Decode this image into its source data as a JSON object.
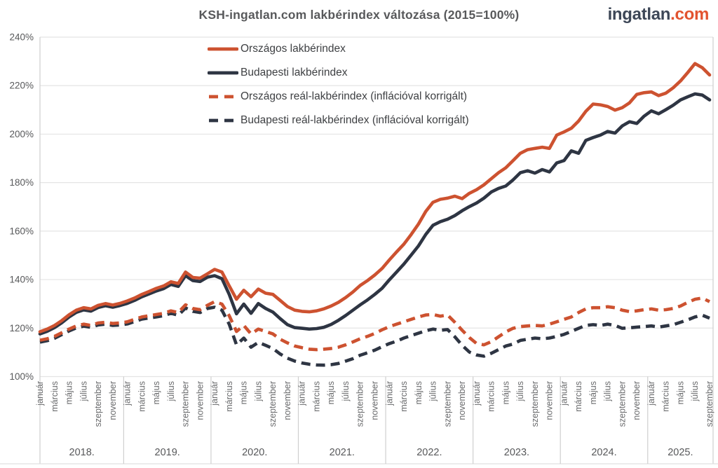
{
  "header": {
    "title": "KSH-ingatlan.com lakbérindex változása (2015=100%)",
    "logo": {
      "name": "ingatlan",
      "tld": ".com"
    }
  },
  "colors": {
    "orange": "#cd5230",
    "navy": "#2e3543",
    "grid": "#e4e4e4",
    "axis_line": "#cfcfcf",
    "bottom_line": "#e0e0e0",
    "tick_text": "#6a6b6d",
    "axis_text": "#57585a"
  },
  "chart_data": {
    "type": "line",
    "title": "KSH-ingatlan.com lakbérindex változása (2015=100%)",
    "grid": "horizontal",
    "legend_position": "top-left-inside",
    "y_axis": {
      "min": 100,
      "max": 240,
      "step": 20,
      "unit": "%",
      "tick_labels": [
        "100%",
        "120%",
        "140%",
        "160%",
        "180%",
        "200%",
        "220%",
        "240%"
      ]
    },
    "x_axis": {
      "start": "2018 január",
      "end": "2025 szeptember",
      "years": [
        {
          "label": "2018.",
          "months": 12
        },
        {
          "label": "2019.",
          "months": 12
        },
        {
          "label": "2020.",
          "months": 12
        },
        {
          "label": "2021.",
          "months": 12
        },
        {
          "label": "2022.",
          "months": 12
        },
        {
          "label": "2023.",
          "months": 12
        },
        {
          "label": "2024.",
          "months": 12
        },
        {
          "label": "2025.",
          "months": 9
        }
      ],
      "month_tick_offsets": [
        0,
        2,
        4,
        6,
        8,
        10
      ],
      "month_tick_labels": [
        "január",
        "március",
        "május",
        "július",
        "szeptember",
        "november"
      ]
    },
    "series": [
      {
        "name": "Országos lakbérindex",
        "color": "#cd5230",
        "dashed": false,
        "values": [
          118.5,
          119.6,
          121.1,
          123.1,
          125.5,
          127.4,
          128.4,
          127.9,
          129.4,
          130.1,
          129.5,
          130.2,
          131.2,
          132.4,
          133.9,
          135.1,
          136.4,
          137.4,
          139.1,
          138.4,
          143.1,
          140.9,
          140.6,
          142.4,
          144.2,
          143.1,
          137.4,
          131.9,
          135.6,
          132.9,
          136.1,
          134.4,
          133.9,
          131.4,
          128.9,
          127.4,
          126.9,
          126.7,
          127.1,
          127.9,
          129.1,
          130.6,
          132.6,
          134.9,
          137.6,
          139.6,
          141.9,
          144.6,
          148.1,
          151.4,
          154.6,
          158.6,
          162.9,
          168.1,
          171.9,
          173.1,
          173.6,
          174.4,
          173.4,
          175.6,
          177.1,
          179.1,
          181.6,
          184.1,
          186.1,
          189.1,
          192.1,
          193.6,
          194.1,
          194.6,
          194.1,
          199.6,
          200.9,
          202.4,
          205.4,
          209.4,
          212.4,
          212.1,
          211.4,
          209.9,
          210.9,
          212.9,
          216.4,
          217.1,
          217.4,
          215.9,
          216.9,
          219.1,
          221.9,
          225.4,
          229.1,
          227.4,
          224.4
        ]
      },
      {
        "name": "Budapesti lakbérindex",
        "color": "#2e3543",
        "dashed": false,
        "values": [
          117.6,
          118.7,
          120.2,
          122.2,
          124.6,
          126.5,
          127.5,
          127.0,
          128.5,
          129.2,
          128.6,
          129.3,
          130.2,
          131.4,
          132.9,
          134.1,
          135.3,
          136.3,
          138.0,
          137.2,
          141.6,
          139.6,
          139.2,
          141.0,
          141.6,
          140.4,
          133.9,
          125.9,
          129.9,
          126.1,
          130.1,
          128.1,
          126.6,
          123.9,
          121.4,
          120.2,
          119.9,
          119.6,
          119.8,
          120.3,
          121.5,
          123.2,
          125.2,
          127.4,
          129.6,
          131.6,
          133.9,
          136.4,
          139.9,
          143.1,
          146.4,
          150.1,
          153.9,
          158.6,
          162.4,
          163.9,
          164.9,
          166.4,
          168.4,
          170.1,
          171.6,
          173.6,
          176.1,
          177.6,
          178.6,
          181.1,
          184.1,
          184.9,
          183.9,
          185.4,
          184.4,
          188.1,
          189.1,
          193.1,
          192.1,
          197.4,
          198.6,
          199.6,
          201.1,
          200.4,
          203.4,
          205.1,
          204.4,
          207.4,
          209.6,
          208.4,
          210.1,
          211.9,
          214.1,
          215.4,
          216.6,
          216.1,
          214.1
        ]
      },
      {
        "name": "Országos reál-lakbérindex (inflációval korrigált)",
        "color": "#cd5230",
        "dashed": true,
        "values": [
          115.0,
          115.6,
          116.6,
          118.1,
          119.6,
          120.9,
          121.6,
          121.1,
          122.1,
          122.4,
          121.9,
          122.1,
          122.6,
          123.6,
          124.6,
          125.1,
          125.6,
          126.1,
          127.1,
          126.4,
          129.6,
          128.1,
          127.6,
          129.4,
          130.9,
          129.9,
          125.1,
          118.6,
          121.1,
          117.6,
          119.6,
          118.6,
          117.6,
          115.4,
          113.9,
          112.6,
          111.9,
          111.3,
          111.1,
          111.3,
          111.6,
          112.1,
          113.1,
          114.3,
          115.6,
          116.6,
          117.8,
          119.3,
          120.6,
          121.6,
          122.6,
          123.6,
          124.6,
          125.4,
          125.6,
          124.9,
          125.4,
          122.4,
          119.1,
          116.1,
          113.6,
          113.1,
          114.4,
          116.4,
          118.4,
          119.9,
          120.6,
          120.9,
          121.1,
          120.9,
          121.6,
          122.6,
          123.6,
          124.6,
          126.4,
          127.9,
          128.4,
          128.4,
          128.8,
          128.4,
          127.4,
          126.8,
          127.1,
          127.6,
          127.9,
          127.4,
          127.6,
          128.1,
          129.1,
          130.6,
          131.9,
          132.4,
          130.9
        ]
      },
      {
        "name": "Budapesti reál-lakbérindex (inflációval korrigált)",
        "color": "#2e3543",
        "dashed": true,
        "values": [
          114.2,
          114.8,
          115.8,
          117.3,
          118.8,
          120.1,
          120.8,
          120.3,
          121.3,
          121.6,
          121.1,
          121.3,
          121.7,
          122.7,
          123.7,
          124.2,
          124.6,
          125.1,
          126.1,
          125.3,
          128.3,
          126.9,
          126.4,
          128.1,
          128.6,
          127.4,
          121.6,
          113.1,
          115.9,
          112.1,
          114.1,
          112.9,
          111.6,
          109.3,
          107.6,
          106.4,
          105.6,
          105.1,
          104.8,
          104.7,
          104.9,
          105.4,
          106.4,
          107.4,
          108.8,
          109.8,
          110.9,
          112.3,
          113.6,
          114.6,
          115.9,
          116.9,
          117.9,
          118.9,
          119.6,
          119.1,
          119.4,
          116.4,
          112.9,
          110.1,
          108.9,
          108.4,
          109.6,
          111.1,
          112.6,
          113.4,
          114.9,
          115.4,
          115.9,
          115.6,
          115.9,
          116.6,
          117.4,
          118.6,
          119.9,
          121.1,
          121.4,
          121.1,
          121.6,
          121.1,
          119.9,
          120.1,
          120.4,
          120.6,
          120.9,
          120.4,
          120.9,
          121.4,
          122.4,
          123.4,
          124.6,
          125.3,
          124.1
        ]
      }
    ]
  }
}
